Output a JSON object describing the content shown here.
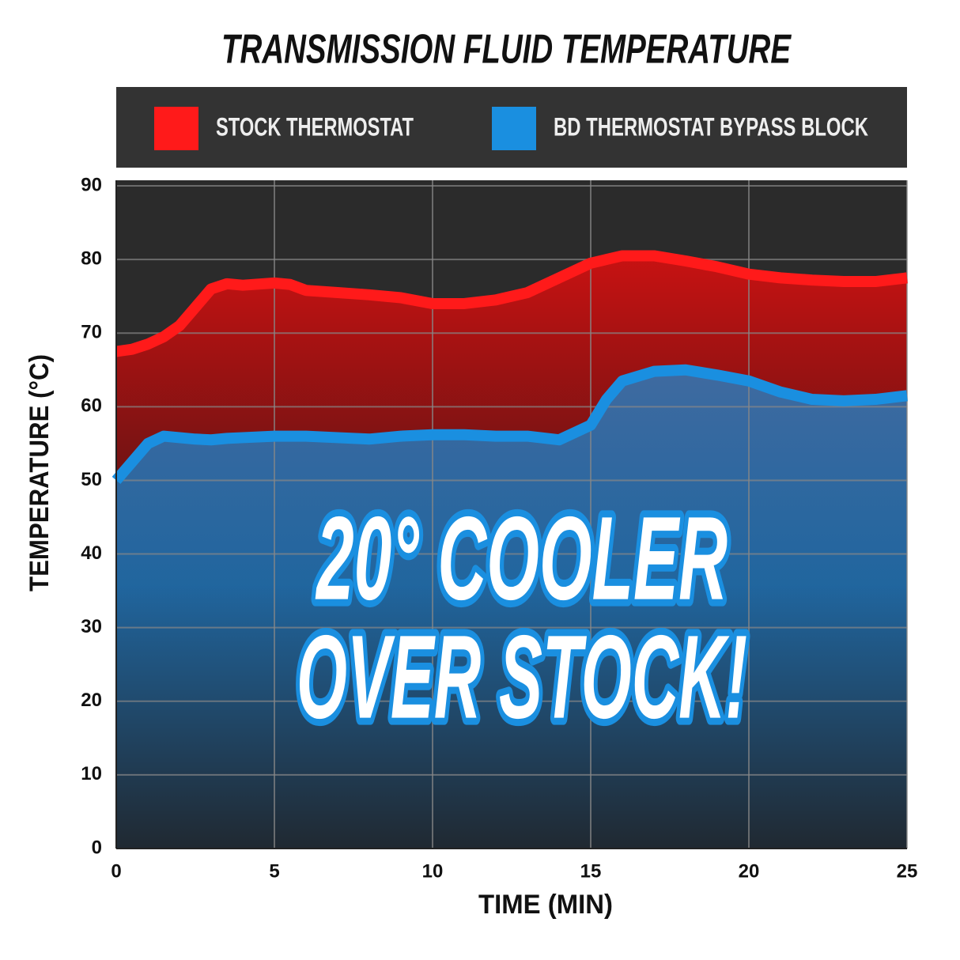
{
  "chart_data": {
    "type": "area",
    "title": "TRANSMISSION FLUID TEMPERATURE",
    "x_label": "TIME (MIN)",
    "y_label": "TEMPERATURE (°C)",
    "annotation": [
      "20° COOLER",
      "OVER STOCK!"
    ],
    "x": [
      0,
      0.5,
      1,
      1.5,
      2,
      2.5,
      3,
      3.5,
      4,
      5,
      5.5,
      6,
      7,
      8,
      9,
      10,
      11,
      12,
      13,
      14,
      15,
      15.5,
      16,
      17,
      18,
      19,
      20,
      21,
      22,
      23,
      24,
      25
    ],
    "series": [
      {
        "name": "STOCK THERMOSTAT",
        "color": "#ff1a1a",
        "values": [
          67.5,
          67.8,
          68.5,
          69.5,
          71,
          73.5,
          76,
          76.7,
          76.5,
          76.8,
          76.6,
          75.8,
          75.5,
          75.2,
          74.8,
          74,
          74,
          74.5,
          75.5,
          77.5,
          79.5,
          80,
          80.5,
          80.5,
          79.8,
          79,
          78,
          77.5,
          77.2,
          77,
          77,
          77.5
        ]
      },
      {
        "name": "BD THERMOSTAT BYPASS BLOCK",
        "color": "#1a8fe0",
        "values": [
          50,
          52.5,
          55,
          56,
          55.8,
          55.6,
          55.5,
          55.7,
          55.8,
          56,
          56,
          56,
          55.8,
          55.6,
          56,
          56.2,
          56.2,
          56,
          56,
          55.5,
          57.5,
          61,
          63.5,
          64.8,
          65,
          64.3,
          63.5,
          62,
          61,
          60.8,
          61,
          61.5
        ]
      }
    ],
    "xlim": [
      0,
      25
    ],
    "ylim": [
      0,
      90
    ],
    "xticks": [
      0,
      5,
      10,
      15,
      20,
      25
    ],
    "yticks": [
      0,
      10,
      20,
      30,
      40,
      50,
      60,
      70,
      80,
      90
    ],
    "grid": true
  }
}
